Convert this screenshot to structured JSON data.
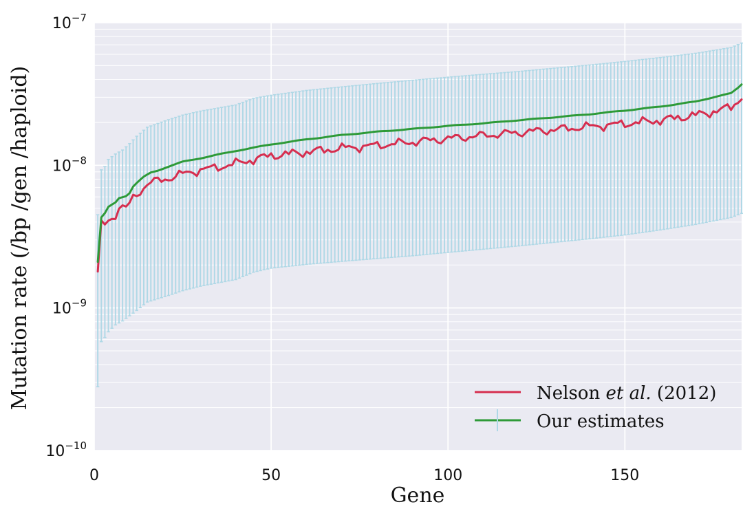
{
  "chart_data": {
    "type": "line",
    "xlabel": "Gene",
    "ylabel": "Mutation rate (/bp /gen /haploid)",
    "xlim": [
      0,
      183
    ],
    "ylim": [
      1e-10,
      1e-07
    ],
    "yscale": "log",
    "x_ticks": [
      {
        "value": 0,
        "label": "0"
      },
      {
        "value": 50,
        "label": "50"
      },
      {
        "value": 100,
        "label": "100"
      },
      {
        "value": 150,
        "label": "150"
      }
    ],
    "y_ticks": [
      {
        "value": 1e-10,
        "base": "10",
        "exponent": "−10"
      },
      {
        "value": 1e-09,
        "base": "10",
        "exponent": "−9"
      },
      {
        "value": 1e-08,
        "base": "10",
        "exponent": "−8"
      },
      {
        "value": 1e-07,
        "base": "10",
        "exponent": "−7"
      }
    ],
    "grid": true,
    "legend": {
      "placement": "lower-right",
      "nelson": {
        "name_prefix": "Nelson ",
        "name_italic": "et al.",
        "name_suffix": " (2012)"
      },
      "ours": {
        "name": "Our estimates"
      }
    },
    "series": [
      {
        "key": "nelson",
        "color": "#d62e4f",
        "anchors_x": [
          1,
          2,
          3,
          4,
          5,
          6,
          7,
          8,
          9,
          10,
          11,
          12,
          13,
          14,
          15,
          16,
          17,
          18,
          20,
          25,
          30,
          35,
          40,
          45,
          50,
          60,
          70,
          80,
          90,
          100,
          110,
          120,
          130,
          140,
          150,
          160,
          170,
          175,
          180,
          183
        ],
        "anchors_y": [
          1.7e-09,
          4e-09,
          3.8e-09,
          4e-09,
          4.4e-09,
          4.5e-09,
          5e-09,
          5.1e-09,
          5.1e-09,
          5.2e-09,
          6e-09,
          6.3e-09,
          6.6e-09,
          6.9e-09,
          7.5e-09,
          7.5e-09,
          7.7e-09,
          7.8e-09,
          8e-09,
          8.7e-09,
          9.3e-09,
          9.7e-09,
          1.03e-08,
          1.1e-08,
          1.17e-08,
          1.24e-08,
          1.32e-08,
          1.38e-08,
          1.46e-08,
          1.54e-08,
          1.62e-08,
          1.7e-08,
          1.78e-08,
          1.87e-08,
          1.96e-08,
          2.07e-08,
          2.25e-08,
          2.38e-08,
          2.55e-08,
          3e-08
        ]
      },
      {
        "key": "ours",
        "color": "#2e9a38",
        "anchors_x": [
          1,
          2,
          3,
          4,
          5,
          6,
          7,
          8,
          9,
          10,
          11,
          12,
          13,
          14,
          15,
          16,
          18,
          20,
          25,
          30,
          35,
          40,
          45,
          50,
          60,
          70,
          80,
          90,
          100,
          110,
          120,
          130,
          140,
          150,
          160,
          170,
          175,
          180,
          182,
          183
        ],
        "anchors_y": [
          2.1e-09,
          4.3e-09,
          4.6e-09,
          5.1e-09,
          5.3e-09,
          5.5e-09,
          5.9e-09,
          6e-09,
          6.1e-09,
          6.4e-09,
          7.1e-09,
          7.5e-09,
          7.9e-09,
          8.3e-09,
          8.6e-09,
          8.9e-09,
          9.2e-09,
          9.6e-09,
          1.06e-08,
          1.12e-08,
          1.19e-08,
          1.26e-08,
          1.33e-08,
          1.4e-08,
          1.52e-08,
          1.63e-08,
          1.72e-08,
          1.8e-08,
          1.89e-08,
          1.97e-08,
          2.07e-08,
          2.17e-08,
          2.28e-08,
          2.42e-08,
          2.58e-08,
          2.8e-08,
          3e-08,
          3.2e-08,
          3.5e-08,
          3.7e-08
        ]
      }
    ],
    "error_bars": {
      "color": "#add8e6",
      "x_start": 1,
      "x_end": 183,
      "upper_anchors_x": [
        1,
        2,
        3,
        4,
        5,
        6,
        8,
        10,
        12,
        15,
        20,
        25,
        30,
        40,
        45,
        50,
        60,
        70,
        80,
        90,
        100,
        110,
        120,
        130,
        140,
        150,
        160,
        170,
        180,
        183
      ],
      "upper_anchors_y": [
        4.5e-09,
        9.3e-09,
        9.8e-09,
        1.1e-08,
        1.15e-08,
        1.2e-08,
        1.28e-08,
        1.42e-08,
        1.6e-08,
        1.85e-08,
        2.05e-08,
        2.25e-08,
        2.4e-08,
        2.65e-08,
        2.95e-08,
        3.1e-08,
        3.35e-08,
        3.55e-08,
        3.75e-08,
        3.95e-08,
        4.15e-08,
        4.35e-08,
        4.55e-08,
        4.8e-08,
        5.05e-08,
        5.35e-08,
        5.7e-08,
        6.1e-08,
        6.7e-08,
        7.2e-08
      ],
      "lower_anchors_x": [
        1,
        2,
        3,
        4,
        5,
        6,
        8,
        10,
        12,
        15,
        20,
        25,
        30,
        40,
        45,
        50,
        60,
        70,
        80,
        90,
        100,
        110,
        120,
        130,
        140,
        150,
        160,
        170,
        180,
        183
      ],
      "lower_anchors_y": [
        2.8e-10,
        5.8e-10,
        6.2e-10,
        6.8e-10,
        7.2e-10,
        7.6e-10,
        8.1e-10,
        8.8e-10,
        9.6e-10,
        1.1e-09,
        1.2e-09,
        1.32e-09,
        1.42e-09,
        1.58e-09,
        1.78e-09,
        1.9e-09,
        2.02e-09,
        2.12e-09,
        2.22e-09,
        2.32e-09,
        2.45e-09,
        2.58e-09,
        2.72e-09,
        2.88e-09,
        3.05e-09,
        3.25e-09,
        3.52e-09,
        3.85e-09,
        4.3e-09,
        4.6e-09
      ]
    }
  }
}
